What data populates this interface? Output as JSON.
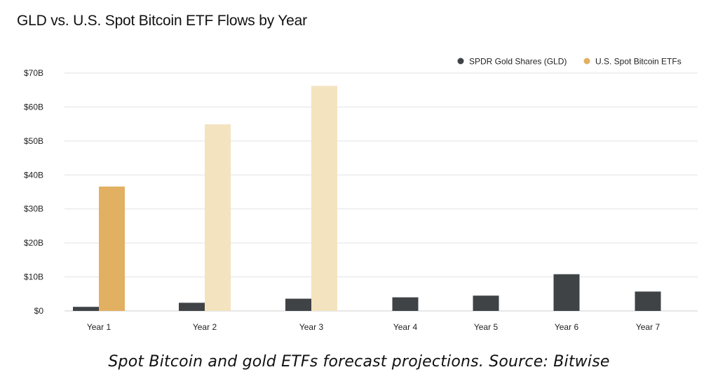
{
  "title": "GLD vs. U.S. Spot Bitcoin ETF Flows by Year",
  "caption": "Spot Bitcoin and gold ETFs forecast projections. Source: Bitwise",
  "colors": {
    "gld": "#3f4346",
    "btc": "#e2b062",
    "btc_projection": "#f3e3bf",
    "grid": "#e2e2e2"
  },
  "chart_data": {
    "type": "bar",
    "categories": [
      "Year 1",
      "Year 2",
      "Year 3",
      "Year 4",
      "Year 5",
      "Year 6",
      "Year 7"
    ],
    "series": [
      {
        "name": "SPDR Gold Shares (GLD)",
        "values": [
          1.2,
          2.4,
          3.6,
          4.0,
          4.5,
          10.8,
          5.7
        ]
      },
      {
        "name": "U.S. Spot Bitcoin ETFs",
        "values": [
          36.6,
          54.9,
          66.2,
          null,
          null,
          null,
          null
        ]
      }
    ],
    "btc_projected": [
      false,
      true,
      true,
      false,
      false,
      false,
      false
    ],
    "yticks": [
      "$0",
      "$10B",
      "$20B",
      "$30B",
      "$40B",
      "$50B",
      "$60B",
      "$70B"
    ],
    "ylim": [
      0,
      70
    ],
    "grid": true,
    "legend_position": "top-right"
  }
}
